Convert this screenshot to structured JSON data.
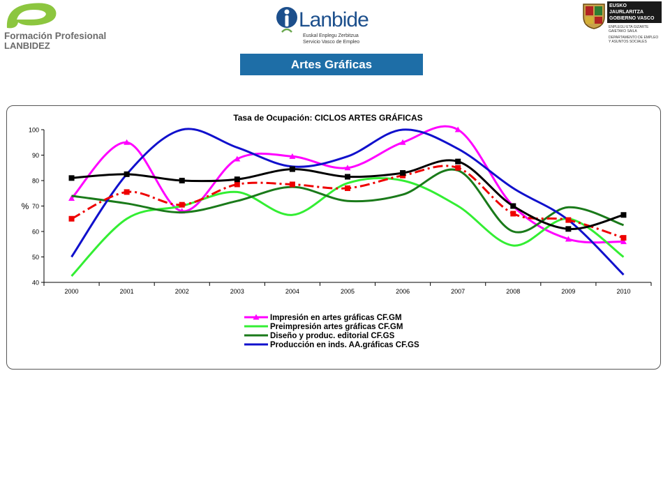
{
  "header": {
    "fp_logo": {
      "line1": "Formación Profesional",
      "line2": "LANBIDEZ"
    },
    "lanbide_logo": {
      "name": "Lanbide",
      "sub1": "Euskal Enplegu Zerbitzua",
      "sub2": "Servicio Vasco de Empleo"
    },
    "gv_logo": {
      "box_line1": "EUSKO JAURLARITZA",
      "box_line2": "GOBIERNO VASCO",
      "dept1": "ENPLEGU ETA GIZARTE",
      "dept2": "GAIETAKO SAILA",
      "dept3": "DEPARTAMENTO DE EMPLEO",
      "dept4": "Y ASUNTOS SOCIALES"
    },
    "page_title": "Artes Gráficas"
  },
  "colors": {
    "title_bg": "#1e6ea7",
    "magenta": "#ff00ff",
    "light_green": "#33ee33",
    "dark_green": "#1a7a1a",
    "blue": "#1010cc",
    "red": "#ee0000",
    "black": "#000000"
  },
  "chart_data": {
    "type": "line",
    "title": "Tasa de Ocupación: CICLOS ARTES GRÁFICAS",
    "ylabel": "%",
    "xlabel": "",
    "ylim": [
      40,
      100
    ],
    "yticks": [
      40,
      50,
      60,
      70,
      80,
      90,
      100
    ],
    "categories": [
      "2000",
      "2001",
      "2002",
      "2003",
      "2004",
      "2005",
      "2006",
      "2007",
      "2008",
      "2009",
      "2010"
    ],
    "legend_position": "bottom",
    "series": [
      {
        "name": "Impresión en artes gráficas CF.GM",
        "color": "#ff00ff",
        "marker": "triangle",
        "dash": "",
        "values": [
          73,
          95,
          68,
          88.5,
          89.5,
          85,
          95,
          100,
          70,
          57,
          56
        ],
        "legend": true
      },
      {
        "name": "Preimpresión artes gráficas CF.GM",
        "color": "#33ee33",
        "marker": "none",
        "dash": "",
        "values": [
          42.5,
          65,
          70,
          75.5,
          66.5,
          79,
          80,
          70,
          54.5,
          65,
          50
        ],
        "legend": true
      },
      {
        "name": "Diseño y produc. editorial CF.GS",
        "color": "#1a7a1a",
        "marker": "none",
        "dash": "",
        "values": [
          74,
          71,
          67.5,
          72,
          77.5,
          72,
          74.5,
          84,
          60,
          69.5,
          62.5
        ],
        "legend": true
      },
      {
        "name": "Producción en inds. AA.gráficas CF.GS",
        "color": "#1010cc",
        "marker": "none",
        "dash": "",
        "values": [
          50,
          82.5,
          100,
          93,
          85.5,
          89.5,
          100,
          92.5,
          77,
          64.5,
          43
        ],
        "legend": true
      },
      {
        "name": "",
        "color": "#ee0000",
        "marker": "square",
        "dash": "14 5 3 5",
        "values": [
          65,
          75.5,
          70.5,
          78.5,
          78.5,
          77,
          82,
          85,
          67,
          64.5,
          57.5
        ],
        "legend": false
      },
      {
        "name": "",
        "color": "#000000",
        "marker": "square",
        "dash": "",
        "values": [
          81,
          82.5,
          80,
          80.5,
          84.5,
          81.5,
          83,
          87.5,
          70,
          61,
          66.5
        ],
        "legend": false
      }
    ]
  }
}
